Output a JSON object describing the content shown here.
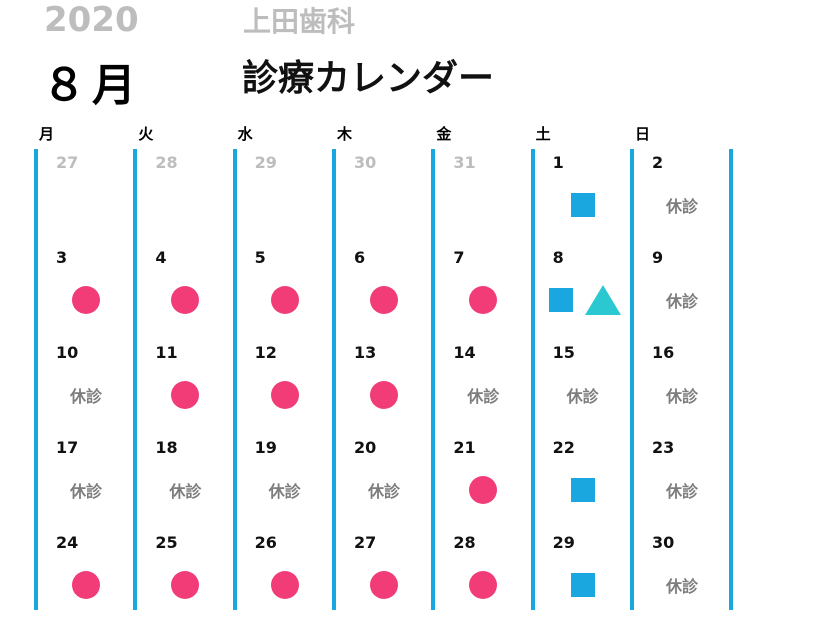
{
  "header": {
    "year": "2020",
    "clinic_name": "上田歯科",
    "month": "８月",
    "title": "診療カレンダー"
  },
  "weekdays": [
    "月",
    "火",
    "水",
    "木",
    "金",
    "土",
    "日"
  ],
  "closed_label": "休診",
  "colors": {
    "column_line": "#1aa6df",
    "dot": "#f23c78",
    "square": "#1aa6df",
    "triangle": "#2cc8d2",
    "muted_text": "#bdbdbd",
    "closed_text": "#7d7d7d"
  },
  "calendar": {
    "weeks": [
      [
        {
          "day": "27",
          "muted": true,
          "marks": []
        },
        {
          "day": "28",
          "muted": true,
          "marks": []
        },
        {
          "day": "29",
          "muted": true,
          "marks": []
        },
        {
          "day": "30",
          "muted": true,
          "marks": []
        },
        {
          "day": "31",
          "muted": true,
          "marks": []
        },
        {
          "day": "1",
          "muted": false,
          "marks": [
            "square"
          ]
        },
        {
          "day": "2",
          "muted": false,
          "marks": [
            "closed"
          ]
        }
      ],
      [
        {
          "day": "3",
          "muted": false,
          "marks": [
            "dot"
          ]
        },
        {
          "day": "4",
          "muted": false,
          "marks": [
            "dot"
          ]
        },
        {
          "day": "5",
          "muted": false,
          "marks": [
            "dot"
          ]
        },
        {
          "day": "6",
          "muted": false,
          "marks": [
            "dot"
          ]
        },
        {
          "day": "7",
          "muted": false,
          "marks": [
            "dot"
          ]
        },
        {
          "day": "8",
          "muted": false,
          "marks": [
            "square",
            "triangle"
          ]
        },
        {
          "day": "9",
          "muted": false,
          "marks": [
            "closed"
          ]
        }
      ],
      [
        {
          "day": "10",
          "muted": false,
          "marks": [
            "closed"
          ]
        },
        {
          "day": "11",
          "muted": false,
          "marks": [
            "dot"
          ]
        },
        {
          "day": "12",
          "muted": false,
          "marks": [
            "dot"
          ]
        },
        {
          "day": "13",
          "muted": false,
          "marks": [
            "dot"
          ]
        },
        {
          "day": "14",
          "muted": false,
          "marks": [
            "closed"
          ]
        },
        {
          "day": "15",
          "muted": false,
          "marks": [
            "closed"
          ]
        },
        {
          "day": "16",
          "muted": false,
          "marks": [
            "closed"
          ]
        }
      ],
      [
        {
          "day": "17",
          "muted": false,
          "marks": [
            "closed"
          ]
        },
        {
          "day": "18",
          "muted": false,
          "marks": [
            "closed"
          ]
        },
        {
          "day": "19",
          "muted": false,
          "marks": [
            "closed"
          ]
        },
        {
          "day": "20",
          "muted": false,
          "marks": [
            "closed"
          ]
        },
        {
          "day": "21",
          "muted": false,
          "marks": [
            "dot"
          ]
        },
        {
          "day": "22",
          "muted": false,
          "marks": [
            "square"
          ]
        },
        {
          "day": "23",
          "muted": false,
          "marks": [
            "closed"
          ]
        }
      ],
      [
        {
          "day": "24",
          "muted": false,
          "marks": [
            "dot"
          ]
        },
        {
          "day": "25",
          "muted": false,
          "marks": [
            "dot"
          ]
        },
        {
          "day": "26",
          "muted": false,
          "marks": [
            "dot"
          ]
        },
        {
          "day": "27",
          "muted": false,
          "marks": [
            "dot"
          ]
        },
        {
          "day": "28",
          "muted": false,
          "marks": [
            "dot"
          ]
        },
        {
          "day": "29",
          "muted": false,
          "marks": [
            "square"
          ]
        },
        {
          "day": "30",
          "muted": false,
          "marks": [
            "closed"
          ]
        }
      ]
    ]
  }
}
